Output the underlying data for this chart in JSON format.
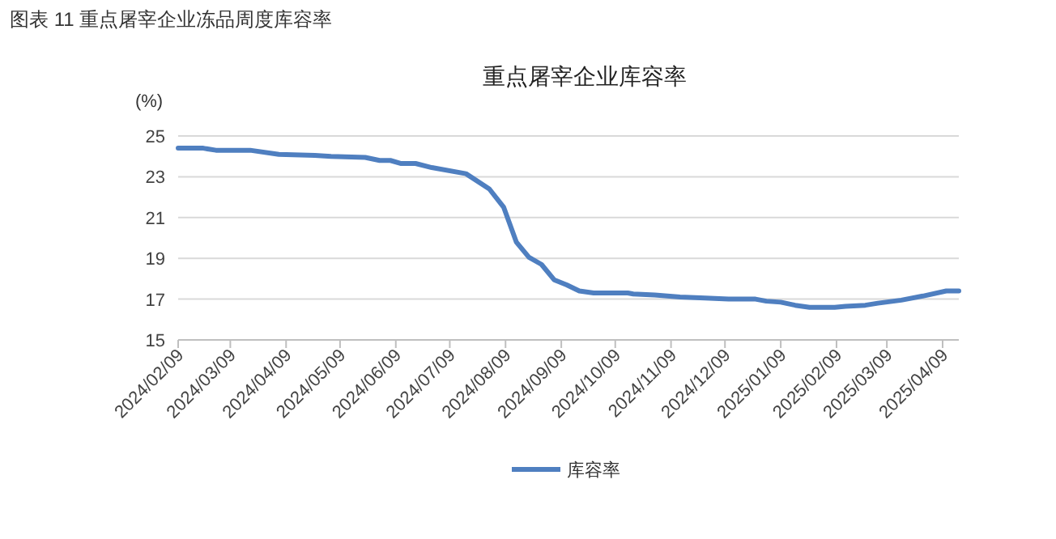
{
  "chart_data": {
    "type": "line",
    "title": "图表 11 重点屠宰企业冻品周度库容率",
    "subtitle": "重点屠宰企业库容率",
    "ylabel": "(%)",
    "x": [
      "2024-02-09",
      "2024-02-23",
      "2024-03-01",
      "2024-03-20",
      "2024-04-05",
      "2024-04-25",
      "2024-05-04",
      "2024-05-23",
      "2024-05-31",
      "2024-06-06",
      "2024-06-12",
      "2024-06-20",
      "2024-06-29",
      "2024-07-18",
      "2024-07-31",
      "2024-08-08",
      "2024-08-15",
      "2024-08-22",
      "2024-08-29",
      "2024-09-05",
      "2024-09-12",
      "2024-09-19",
      "2024-09-27",
      "2024-10-16",
      "2024-10-19",
      "2024-10-31",
      "2024-11-14",
      "2024-11-28",
      "2024-12-11",
      "2024-12-26",
      "2025-01-01",
      "2025-01-09",
      "2025-01-17",
      "2025-01-25",
      "2025-02-08",
      "2025-02-14",
      "2025-02-25",
      "2025-03-04",
      "2025-03-17",
      "2025-03-29",
      "2025-04-11",
      "2025-04-18"
    ],
    "series": [
      {
        "name": "库容率",
        "color": "#4f7fc0",
        "values": [
          24.4,
          24.4,
          24.3,
          24.3,
          24.1,
          24.05,
          24.0,
          23.95,
          23.8,
          23.8,
          23.65,
          23.65,
          23.45,
          23.15,
          22.4,
          21.5,
          19.8,
          19.05,
          18.7,
          17.95,
          17.7,
          17.4,
          17.3,
          17.3,
          17.25,
          17.2,
          17.1,
          17.05,
          17.0,
          17.0,
          16.9,
          16.85,
          16.7,
          16.6,
          16.6,
          16.65,
          16.7,
          16.8,
          16.95,
          17.15,
          17.4,
          17.4
        ]
      }
    ],
    "xlim": [
      "2024-02-09",
      "2025-04-18"
    ],
    "xticks": [
      {
        "value": "2024-02-09",
        "label": "2024/02/09"
      },
      {
        "value": "2024-03-09",
        "label": "2024/03/09"
      },
      {
        "value": "2024-04-09",
        "label": "2024/04/09"
      },
      {
        "value": "2024-05-09",
        "label": "2024/05/09"
      },
      {
        "value": "2024-06-09",
        "label": "2024/06/09"
      },
      {
        "value": "2024-07-09",
        "label": "2024/07/09"
      },
      {
        "value": "2024-08-09",
        "label": "2024/08/09"
      },
      {
        "value": "2024-09-09",
        "label": "2024/09/09"
      },
      {
        "value": "2024-10-09",
        "label": "2024/10/09"
      },
      {
        "value": "2024-11-09",
        "label": "2024/11/09"
      },
      {
        "value": "2024-12-09",
        "label": "2024/12/09"
      },
      {
        "value": "2025-01-09",
        "label": "2025/01/09"
      },
      {
        "value": "2025-02-09",
        "label": "2025/02/09"
      },
      {
        "value": "2025-03-09",
        "label": "2025/03/09"
      },
      {
        "value": "2025-04-09",
        "label": "2025/04/09"
      }
    ],
    "ylim": [
      15,
      25
    ],
    "yticks": [
      15,
      17,
      19,
      21,
      23,
      25
    ],
    "grid": "y",
    "legend": "bottom",
    "marker": "none",
    "line_style": "solid"
  }
}
